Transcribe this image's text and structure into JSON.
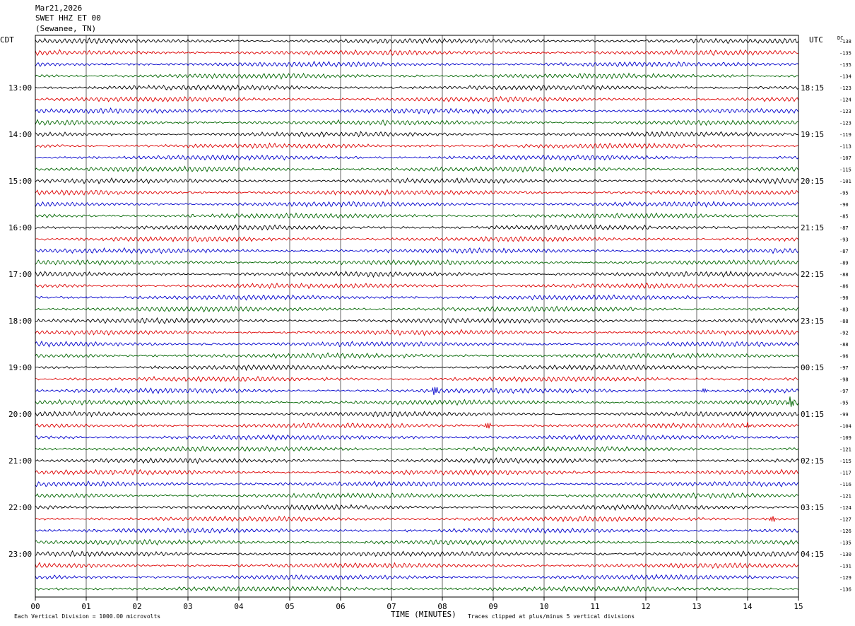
{
  "header": {
    "date": "Mar21,2026",
    "station": "SWET HHZ ET 00",
    "location": "(Sewanee, TN)"
  },
  "left_timezone": "CDT",
  "right_timezone": "UTC",
  "dc_label": "DC",
  "footer": {
    "scale_note": "Each Vertical Division = 1000.00 microvolts",
    "xaxis_label": "TIME (MINUTES)",
    "clip_note": "Traces clipped at plus/minus 5 vertical divisions"
  },
  "colors": {
    "trace_cycle": [
      "#000000",
      "#dd0000",
      "#0000cc",
      "#006600"
    ],
    "grid": "#000000",
    "background": "#ffffff"
  },
  "chart_data": {
    "type": "line",
    "title": "SWET HHZ ET 00 (Sewanee, TN) Mar21,2026",
    "xlabel": "TIME (MINUTES)",
    "xlim": [
      0,
      15
    ],
    "x_ticks": [
      "00",
      "01",
      "02",
      "03",
      "04",
      "05",
      "06",
      "07",
      "08",
      "09",
      "10",
      "11",
      "12",
      "13",
      "14",
      "15"
    ],
    "rows_per_hour": 4,
    "left_hour_labels": [
      "13:00",
      "14:00",
      "15:00",
      "16:00",
      "17:00",
      "18:00",
      "19:00",
      "20:00",
      "21:00",
      "22:00",
      "23:00"
    ],
    "right_hour_labels": [
      "18:15",
      "19:15",
      "20:15",
      "21:15",
      "22:15",
      "23:15",
      "00:15",
      "01:15",
      "02:15",
      "03:15",
      "04:15"
    ],
    "row_dc_offsets": [
      -138,
      -135,
      -135,
      -134,
      -123,
      -124,
      -123,
      -123,
      -119,
      -113,
      -107,
      -115,
      -101,
      -95,
      -90,
      -85,
      -87,
      -93,
      -87,
      -89,
      -88,
      -86,
      -90,
      -83,
      -88,
      -92,
      -88,
      -96,
      -97,
      -98,
      -97,
      -95,
      -99,
      -104,
      -109,
      -121,
      -115,
      -117,
      -116,
      -121,
      -124,
      -127,
      -126,
      -135,
      -130,
      -131,
      -129,
      -136
    ],
    "events": [
      {
        "row": 30,
        "minute": 7.85,
        "amp": 6
      },
      {
        "row": 30,
        "minute": 13.15,
        "amp": 9
      },
      {
        "row": 31,
        "minute": 14.85,
        "amp": 8
      },
      {
        "row": 33,
        "minute": 8.9,
        "amp": 5
      },
      {
        "row": 33,
        "minute": 14.0,
        "amp": 5
      },
      {
        "row": 36,
        "minute": 12.6,
        "amp": 5
      },
      {
        "row": 41,
        "minute": 14.5,
        "amp": 5
      }
    ]
  }
}
